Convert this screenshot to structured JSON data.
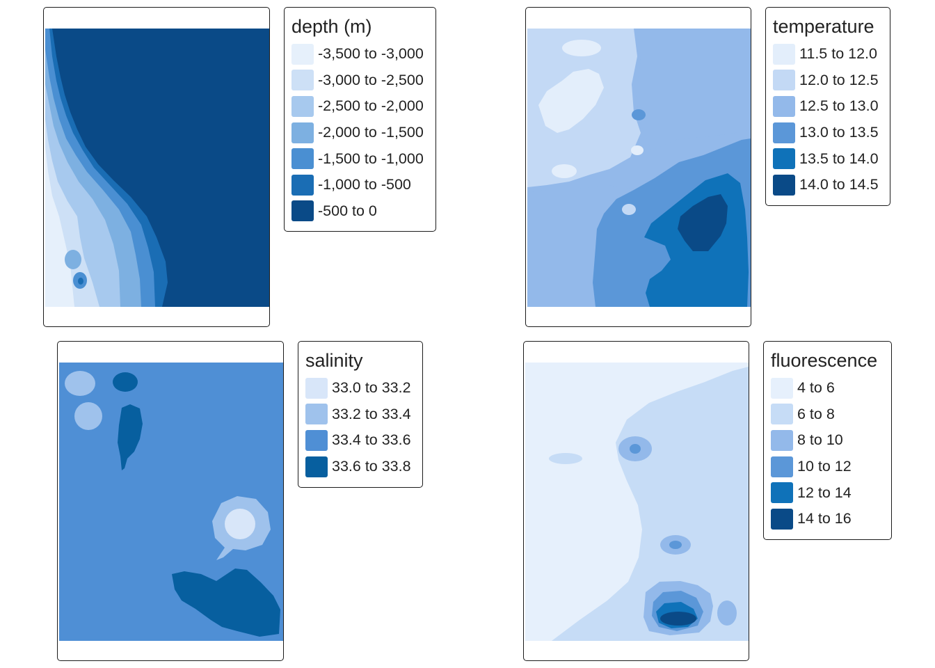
{
  "panels": {
    "depth": {
      "legend_title": "depth (m)",
      "classes": [
        {
          "label": "-3,500 to -3,000",
          "color": "#e6f0fb"
        },
        {
          "label": "-3,000 to -2,500",
          "color": "#cde0f6"
        },
        {
          "label": "-2,500 to -2,000",
          "color": "#a7c9ee"
        },
        {
          "label": "-2,000 to -1,500",
          "color": "#7db0e1"
        },
        {
          "label": "-1,500 to -1,000",
          "color": "#4a8fd2"
        },
        {
          "label": "-1,000 to -500",
          "color": "#1a6db4"
        },
        {
          "label": "-500 to 0",
          "color": "#0a4a87"
        }
      ]
    },
    "temperature": {
      "legend_title": "temperature",
      "classes": [
        {
          "label": "11.5 to 12.0",
          "color": "#e3eefb"
        },
        {
          "label": "12.0 to 12.5",
          "color": "#c3d9f5"
        },
        {
          "label": "12.5 to 13.0",
          "color": "#93b9ea"
        },
        {
          "label": "13.0 to 13.5",
          "color": "#5b97d8"
        },
        {
          "label": "13.5 to 14.0",
          "color": "#0f72b9"
        },
        {
          "label": "14.0 to 14.5",
          "color": "#0a4a87"
        }
      ]
    },
    "salinity": {
      "legend_title": "salinity",
      "classes": [
        {
          "label": "33.0 to 33.2",
          "color": "#d8e6f9"
        },
        {
          "label": "33.2 to 33.4",
          "color": "#9fc2ec"
        },
        {
          "label": "33.4 to 33.6",
          "color": "#4f8fd5"
        },
        {
          "label": "33.6 to 33.8",
          "color": "#075f9f"
        }
      ]
    },
    "fluorescence": {
      "legend_title": "fluorescence",
      "classes": [
        {
          "label": "4 to 6",
          "color": "#e6f0fc"
        },
        {
          "label": "6 to 8",
          "color": "#c6dcf6"
        },
        {
          "label": "8 to 10",
          "color": "#93b9ea"
        },
        {
          "label": "10 to 12",
          "color": "#5b97d8"
        },
        {
          "label": "12 to 14",
          "color": "#0f72b9"
        },
        {
          "label": "14 to 16",
          "color": "#0a4a87"
        }
      ]
    }
  }
}
